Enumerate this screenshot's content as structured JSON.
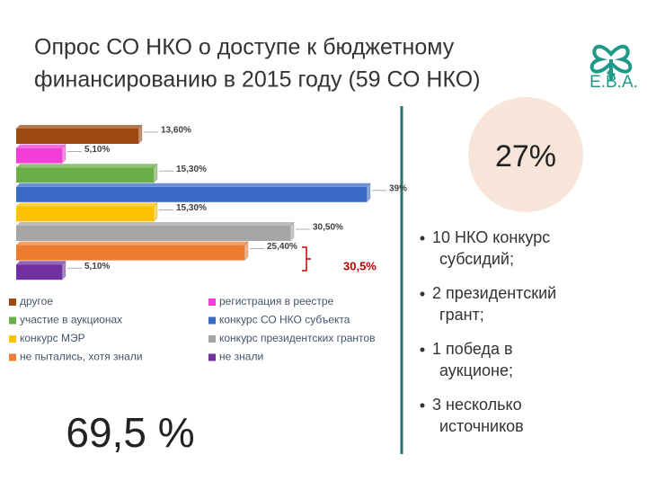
{
  "slide": {
    "title_lines": [
      "Опрос СО НКО о доступе к бюджетному",
      "финансированию в 2015 году (59 СО НКО)"
    ],
    "logo_text": "Е.В.А.",
    "circle_value": "27%",
    "big_value": "69,5 %",
    "bullets": [
      [
        "10 НКО конкурс",
        "субсидий;"
      ],
      [
        "2 президентский",
        "грант;"
      ],
      [
        "1 победа в",
        "аукционе;"
      ],
      [
        "3 несколько",
        "источников"
      ]
    ]
  },
  "chart_data": {
    "type": "bar",
    "orientation": "horizontal",
    "categories": [
      "другое",
      "регистрация в реестре",
      "участие в аукционах",
      "конкурс СО НКО субъекта",
      "конкурс МЭР",
      "конкурс президентских грантов",
      "не пытались, хотя знали",
      "не знали"
    ],
    "values": [
      13.6,
      5.1,
      15.3,
      39,
      15.3,
      30.5,
      25.4,
      5.1
    ],
    "value_labels": [
      "13,60%",
      "5,10%",
      "15,30%",
      "39%",
      "15,30%",
      "30,50%",
      "25,40%",
      "5,10%"
    ],
    "colors": [
      "#9c4a10",
      "#f23dd6",
      "#6aae48",
      "#3a6bc6",
      "#ffc000",
      "#a5a5a5",
      "#ed7d31",
      "#7030a0"
    ],
    "annotation": "30,5%"
  }
}
